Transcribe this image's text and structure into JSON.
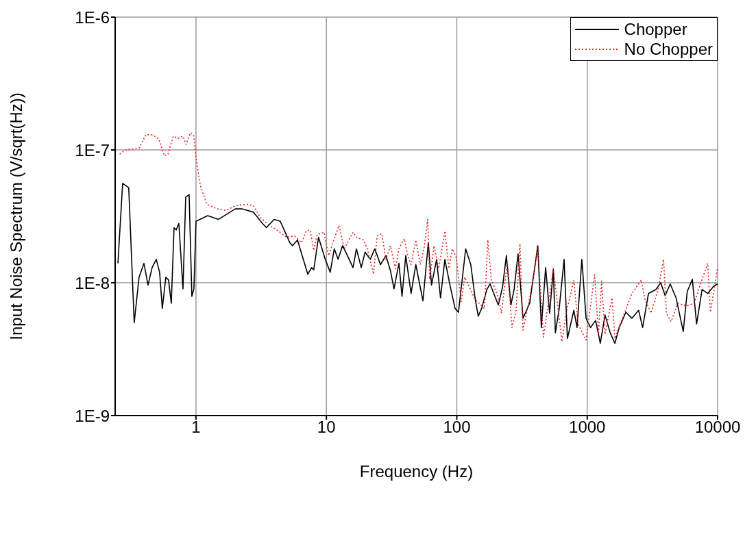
{
  "chart_data": {
    "type": "line",
    "xlabel": "Frequency (Hz)",
    "ylabel": "Input Noise Spectrum (V/sqrt(Hz))",
    "log": "xy",
    "grid": true,
    "legend": "top right",
    "marker": "none",
    "xlim": [
      0.24,
      10000
    ],
    "xticks": [
      1,
      10,
      100,
      1000,
      10000
    ],
    "ylim": [
      1e-09,
      1e-06
    ],
    "yticks": [
      {
        "value": 1e-09,
        "label": "1E-9"
      },
      {
        "value": 1e-08,
        "label": "1E-8"
      },
      {
        "value": 1e-07,
        "label": "1E-7"
      },
      {
        "value": 1e-06,
        "label": "1E-6"
      }
    ],
    "series": [
      {
        "name": "Chopper",
        "color": "#000000",
        "line_style": "solid",
        "x": [
          0.252,
          0.274,
          0.305,
          0.336,
          0.366,
          0.399,
          0.429,
          0.461,
          0.496,
          0.526,
          0.552,
          0.587,
          0.616,
          0.647,
          0.679,
          0.705,
          0.739,
          0.795,
          0.834,
          0.886,
          0.93,
          0.964,
          1.0,
          1.23,
          1.49,
          2.0,
          2.25,
          2.76,
          3.23,
          3.47,
          3.97,
          4.43,
          5.25,
          5.5,
          6.0,
          7.2,
          7.7,
          8.0,
          8.7,
          9.8,
          10.7,
          11.5,
          12.3,
          13.3,
          14.5,
          16,
          17,
          18.5,
          19.8,
          21.7,
          23.5,
          26,
          28.6,
          31,
          33,
          36,
          38,
          40.6,
          44.6,
          48.5,
          55,
          60.5,
          64,
          70,
          75,
          81,
          89,
          97,
          103,
          117,
          128,
          138,
          146,
          155,
          170,
          180,
          208,
          224,
          240,
          260,
          275,
          295,
          322,
          362,
          418,
          445,
          480,
          515,
          550,
          570,
          610,
          665,
          705,
          790,
          835,
          910,
          980,
          1060,
          1160,
          1260,
          1370,
          1500,
          1630,
          1760,
          1980,
          2200,
          2480,
          2660,
          2950,
          3370,
          3660,
          3960,
          4330,
          4800,
          5450,
          5850,
          6400,
          6900,
          7600,
          8400,
          9300,
          10000
        ],
        "values": [
          1.4e-08,
          5.6e-08,
          5.2e-08,
          5e-09,
          1.1e-08,
          1.4e-08,
          9.6e-09,
          1.3e-08,
          1.5e-08,
          1.2e-08,
          6.4e-09,
          1.1e-08,
          1.05e-08,
          7e-09,
          2.6e-08,
          2.5e-08,
          2.8e-08,
          9e-09,
          4.4e-08,
          4.6e-08,
          7.9e-09,
          9e-09,
          2.9e-08,
          3.2e-08,
          3e-08,
          3.6e-08,
          3.6e-08,
          3.4e-08,
          2.8e-08,
          2.6e-08,
          3e-08,
          2.9e-08,
          2e-08,
          1.9e-08,
          2.1e-08,
          1.16e-08,
          1.3e-08,
          1.25e-08,
          2.2e-08,
          1.5e-08,
          1.2e-08,
          1.8e-08,
          1.5e-08,
          1.9e-08,
          1.6e-08,
          1.3e-08,
          1.8e-08,
          1.3e-08,
          1.7e-08,
          1.5e-08,
          1.8e-08,
          1.37e-08,
          1.6e-08,
          1.23e-08,
          9e-09,
          1.4e-08,
          7.9e-09,
          1.6e-08,
          8.3e-09,
          1.37e-08,
          7.3e-09,
          2e-08,
          9.6e-09,
          1.5e-08,
          7.7e-09,
          1.5e-08,
          9.4e-09,
          6.4e-09,
          6e-09,
          1.8e-08,
          1.37e-08,
          7.7e-09,
          5.6e-09,
          6.4e-09,
          8.9e-09,
          9.8e-09,
          6.8e-09,
          9.2e-09,
          1.6e-08,
          6.8e-09,
          8.9e-09,
          1.65e-08,
          5.4e-09,
          7e-09,
          1.9e-08,
          4.6e-09,
          1.3e-08,
          5.9e-09,
          1.27e-08,
          4.2e-09,
          6.4e-09,
          1.5e-08,
          3.8e-09,
          6.2e-09,
          4.6e-09,
          1.5e-08,
          5.4e-09,
          4.6e-09,
          5.2e-09,
          3.5e-09,
          5.7e-09,
          4.2e-09,
          3.5e-09,
          4.6e-09,
          6e-09,
          5.4e-09,
          6.2e-09,
          4.6e-09,
          8.3e-09,
          8.9e-09,
          1e-08,
          8e-09,
          9.8e-09,
          7.7e-09,
          4.3e-09,
          8.6e-09,
          1.06e-08,
          4.9e-09,
          8.9e-09,
          8.3e-09,
          9.4e-09,
          9.8e-09
        ]
      },
      {
        "name": "No Chopper",
        "color": "#e8201c",
        "line_style": "dotted",
        "x": [
          0.26,
          0.287,
          0.366,
          0.413,
          0.467,
          0.52,
          0.573,
          0.61,
          0.67,
          0.73,
          0.795,
          0.84,
          0.91,
          0.964,
          0.99,
          1.08,
          1.21,
          1.45,
          1.7,
          2.0,
          2.45,
          2.76,
          3.12,
          3.65,
          4.3,
          4.95,
          5.7,
          6.45,
          7.0,
          7.5,
          8.0,
          8.5,
          9.6,
          10.4,
          11.4,
          12.5,
          13.7,
          16,
          17,
          19.2,
          20.6,
          23,
          24.5,
          26.6,
          28.6,
          31,
          33.8,
          36,
          39.6,
          42,
          44.6,
          48.5,
          52.5,
          56,
          59.8,
          62,
          67,
          72.6,
          77,
          81,
          87,
          92.5,
          99,
          108,
          115,
          138,
          163,
          173,
          184,
          208,
          220,
          243,
          265,
          285,
          305,
          322,
          362,
          418,
          462,
          550,
          640,
          690,
          790,
          850,
          980,
          1140,
          1220,
          1290,
          1370,
          1550,
          1630,
          2200,
          2600,
          2750,
          3080,
          3500,
          3850,
          4050,
          4400,
          4950,
          5800,
          6600,
          7600,
          8400,
          8800,
          9400,
          10000
        ],
        "values": [
          9.3e-08,
          1e-07,
          1.03e-07,
          1.3e-07,
          1.3e-07,
          1.2e-07,
          9e-08,
          9.3e-08,
          1.27e-07,
          1.22e-07,
          1.27e-07,
          1.1e-07,
          1.35e-07,
          1.27e-07,
          9.5e-08,
          5.4e-08,
          3.9e-08,
          3.6e-08,
          3.5e-08,
          3.8e-08,
          3.9e-08,
          3.8e-08,
          3.1e-08,
          2.7e-08,
          2.45e-08,
          2.2e-08,
          2.25e-08,
          2e-08,
          2.45e-08,
          2.5e-08,
          1.75e-08,
          2.3e-08,
          2.4e-08,
          1.6e-08,
          2.1e-08,
          2.7e-08,
          1.8e-08,
          2.4e-08,
          2.2e-08,
          2.1e-08,
          1.8e-08,
          1.16e-08,
          2.25e-08,
          2.35e-08,
          1.5e-08,
          1.9e-08,
          1.28e-08,
          1.8e-08,
          2.15e-08,
          1.6e-08,
          1.37e-08,
          2.1e-08,
          1.37e-08,
          1.8e-08,
          3e-08,
          1.06e-08,
          1.9e-08,
          1.28e-08,
          1.8e-08,
          2.45e-08,
          1.28e-08,
          1.8e-08,
          1.55e-08,
          7.2e-09,
          1.1e-08,
          7.5e-09,
          6.4e-09,
          2.1e-08,
          1.06e-08,
          7.7e-09,
          5.9e-09,
          1.37e-08,
          4.6e-09,
          6.2e-09,
          1.97e-08,
          4.4e-09,
          7.7e-09,
          1.8e-08,
          3.9e-09,
          1.28e-08,
          3.6e-09,
          5.9e-09,
          1.04e-08,
          4.9e-09,
          3.7e-09,
          1.15e-08,
          4.1e-09,
          1.03e-08,
          4.1e-09,
          7.7e-09,
          3.8e-09,
          8.3e-09,
          1.05e-08,
          7.7e-09,
          5.9e-09,
          8.9e-09,
          1.5e-08,
          5.9e-09,
          5.1e-09,
          7e-09,
          6.7e-09,
          7e-09,
          1.06e-08,
          1.4e-08,
          6e-09,
          8.9e-09,
          1.3e-08
        ]
      }
    ]
  }
}
